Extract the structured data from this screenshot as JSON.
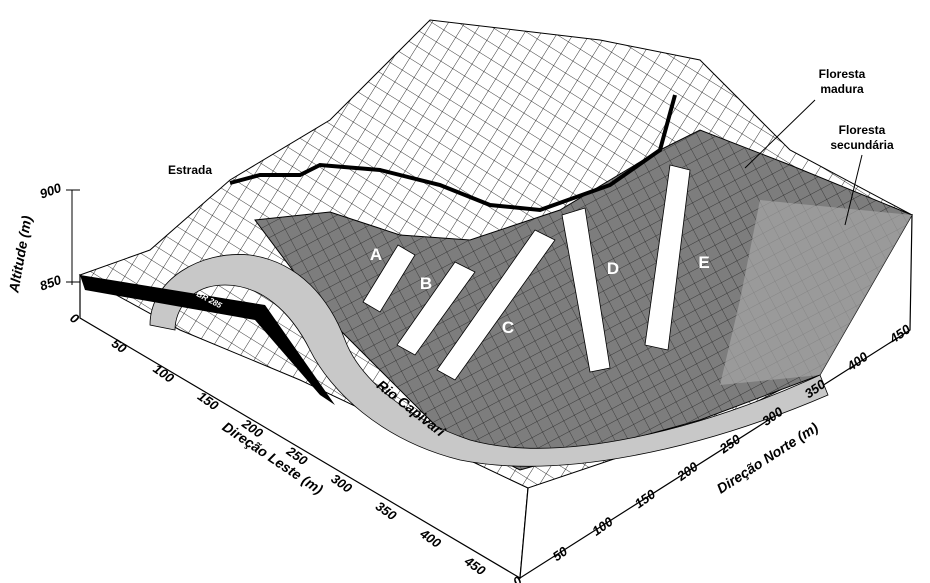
{
  "axes": {
    "altitude": {
      "label": "Altitude (m)",
      "ticks": [
        850,
        900
      ]
    },
    "leste": {
      "label": "Direção Leste (m)",
      "ticks": [
        0,
        50,
        100,
        150,
        200,
        250,
        300,
        350,
        400,
        450
      ]
    },
    "norte": {
      "label": "Direção Norte (m)",
      "ticks": [
        0,
        50,
        100,
        150,
        200,
        250,
        300,
        350,
        400,
        450
      ]
    }
  },
  "annotations": {
    "road": "Estrada",
    "mature_forest": [
      "Floresta",
      "madura"
    ],
    "secondary_forest": [
      "Floresta",
      "secundária"
    ],
    "highway": "BR 285",
    "river": "Rio Capivari"
  },
  "plots": [
    "A",
    "B",
    "C",
    "D",
    "E"
  ]
}
